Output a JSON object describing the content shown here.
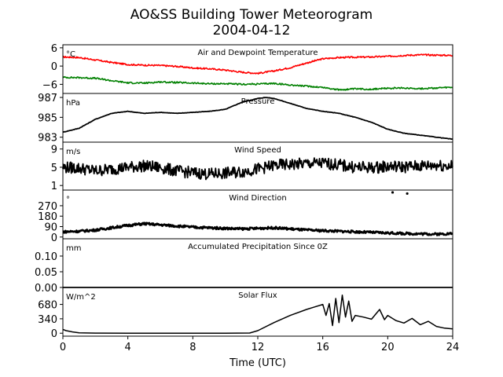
{
  "figure": {
    "title": "AO&SS Building Tower Meteorogram",
    "subtitle": "2004-04-12",
    "xlabel": "Time (UTC)"
  },
  "chart_data": [
    {
      "type": "line",
      "title": "Air and Dewpoint Temperature",
      "unit": "°C",
      "xlim": [
        0,
        24
      ],
      "ylim": [
        -9,
        7
      ],
      "yticks": [
        6,
        0,
        -6
      ],
      "ytick_labels": [
        "6",
        "0",
        "−6"
      ],
      "series": [
        {
          "name": "",
          "color": "#ff0000",
          "x": [
            0,
            1,
            2,
            3,
            4,
            5,
            6,
            7,
            8,
            9,
            10,
            11,
            12,
            13,
            14,
            15,
            16,
            17,
            18,
            19,
            20,
            21,
            22,
            23,
            24
          ],
          "y": [
            3.0,
            2.8,
            2.0,
            1.2,
            0.5,
            0.3,
            0.2,
            -0.1,
            -0.6,
            -0.9,
            -1.3,
            -2.0,
            -2.4,
            -1.6,
            -0.5,
            1.0,
            2.4,
            2.8,
            2.9,
            3.0,
            3.2,
            3.5,
            3.7,
            3.6,
            3.5
          ]
        },
        {
          "name": "",
          "color": "#008000",
          "x": [
            0,
            1,
            2,
            3,
            4,
            5,
            6,
            7,
            8,
            9,
            10,
            11,
            12,
            13,
            14,
            15,
            16,
            17,
            18,
            19,
            20,
            21,
            22,
            23,
            24
          ],
          "y": [
            -3.7,
            -3.8,
            -4.0,
            -4.8,
            -5.5,
            -5.6,
            -5.2,
            -5.4,
            -5.6,
            -5.8,
            -5.8,
            -6.0,
            -5.9,
            -5.7,
            -6.2,
            -6.6,
            -7.0,
            -7.8,
            -7.5,
            -7.6,
            -7.3,
            -7.2,
            -7.4,
            -7.2,
            -7.0
          ]
        }
      ]
    },
    {
      "type": "line",
      "title": "Pressure",
      "unit": "hPa",
      "xlim": [
        0,
        24
      ],
      "ylim": [
        982.5,
        987.4
      ],
      "yticks": [
        987,
        985,
        983
      ],
      "ytick_labels": [
        "987",
        "985",
        "983"
      ],
      "series": [
        {
          "name": "",
          "color": "#000000",
          "x": [
            0,
            1,
            2,
            3,
            4,
            5,
            6,
            7,
            8,
            9,
            10,
            11,
            12,
            12.5,
            13,
            14,
            15,
            16,
            17,
            18,
            19,
            20,
            21,
            22,
            23,
            24
          ],
          "y": [
            983.5,
            983.9,
            984.8,
            985.4,
            985.6,
            985.4,
            985.5,
            985.4,
            985.5,
            985.6,
            985.8,
            986.5,
            986.9,
            987.0,
            986.9,
            986.4,
            985.9,
            985.6,
            985.4,
            985.0,
            984.5,
            983.8,
            983.4,
            983.2,
            983.0,
            982.8
          ]
        }
      ]
    },
    {
      "type": "line",
      "title": "Wind Speed",
      "unit": "m/s",
      "xlim": [
        0,
        24
      ],
      "ylim": [
        0,
        10.5
      ],
      "yticks": [
        9,
        5,
        1
      ],
      "ytick_labels": [
        "9",
        "5",
        "1"
      ],
      "series": [
        {
          "name": "",
          "color": "#000000",
          "x": [
            0,
            1,
            2,
            3,
            4,
            5,
            6,
            7,
            8,
            9,
            10,
            11,
            12,
            13,
            14,
            15,
            16,
            17,
            18,
            19,
            20,
            21,
            22,
            23,
            24
          ],
          "y": [
            5.0,
            4.8,
            4.2,
            4.6,
            5.0,
            5.3,
            4.9,
            4.2,
            3.8,
            3.5,
            3.7,
            4.0,
            4.6,
            5.4,
            5.6,
            5.8,
            5.9,
            5.5,
            5.0,
            4.9,
            5.2,
            5.1,
            5.3,
            5.5,
            5.3
          ]
        }
      ]
    },
    {
      "type": "line",
      "title": "Wind Direction",
      "unit": "°",
      "xlim": [
        0,
        24
      ],
      "ylim": [
        -15,
        405
      ],
      "yticks": [
        270,
        180,
        90,
        0
      ],
      "ytick_labels": [
        "270",
        "180",
        "90",
        "0"
      ],
      "series": [
        {
          "name": "",
          "color": "#000000",
          "x": [
            0,
            1,
            2,
            3,
            4,
            5,
            6,
            7,
            8,
            9,
            10,
            11,
            12,
            13,
            14,
            15,
            16,
            17,
            18,
            19,
            20,
            21,
            22,
            23,
            24
          ],
          "y": [
            45,
            50,
            60,
            80,
            100,
            115,
            105,
            95,
            85,
            80,
            75,
            70,
            75,
            80,
            70,
            60,
            55,
            50,
            45,
            40,
            35,
            30,
            28,
            25,
            30
          ]
        }
      ],
      "outlier_points": [
        {
          "x": 20.3,
          "y": 385
        },
        {
          "x": 21.2,
          "y": 375
        }
      ]
    },
    {
      "type": "line",
      "title": "Accumulated Precipitation Since 0Z",
      "unit": "mm",
      "xlim": [
        0,
        24
      ],
      "ylim": [
        0,
        0.155
      ],
      "yticks": [
        0.1,
        0.05,
        0.0
      ],
      "ytick_labels": [
        "0.10",
        "0.05",
        "0.00"
      ],
      "series": [
        {
          "name": "",
          "color": "#000000",
          "x": [
            0,
            24
          ],
          "y": [
            0,
            0
          ]
        }
      ]
    },
    {
      "type": "line",
      "title": "Solar Flux",
      "unit": "W/m^2",
      "xlim": [
        0,
        24
      ],
      "ylim": [
        -70,
        1080
      ],
      "yticks": [
        680,
        340,
        0
      ],
      "ytick_labels": [
        "680",
        "340",
        "0"
      ],
      "xticks": [
        0,
        4,
        8,
        12,
        16,
        20,
        24
      ],
      "xtick_labels": [
        "0",
        "4",
        "8",
        "12",
        "16",
        "20",
        "24"
      ],
      "series": [
        {
          "name": "",
          "color": "#000000",
          "x": [
            0,
            0.2,
            0.6,
            1,
            2,
            4,
            6,
            8,
            10,
            11.5,
            12,
            13,
            14,
            15,
            15.5,
            16,
            16.2,
            16.4,
            16.6,
            16.8,
            17,
            17.2,
            17.4,
            17.6,
            17.8,
            18,
            18.5,
            19,
            19.5,
            19.8,
            20,
            20.5,
            21,
            21.5,
            22,
            22.5,
            23,
            23.5,
            24
          ],
          "y": [
            90,
            60,
            30,
            10,
            2,
            0,
            0,
            0,
            0,
            5,
            60,
            250,
            420,
            560,
            620,
            680,
            420,
            700,
            180,
            820,
            250,
            900,
            380,
            760,
            280,
            420,
            380,
            330,
            560,
            320,
            420,
            300,
            240,
            350,
            200,
            280,
            160,
            120,
            100
          ]
        }
      ]
    }
  ]
}
